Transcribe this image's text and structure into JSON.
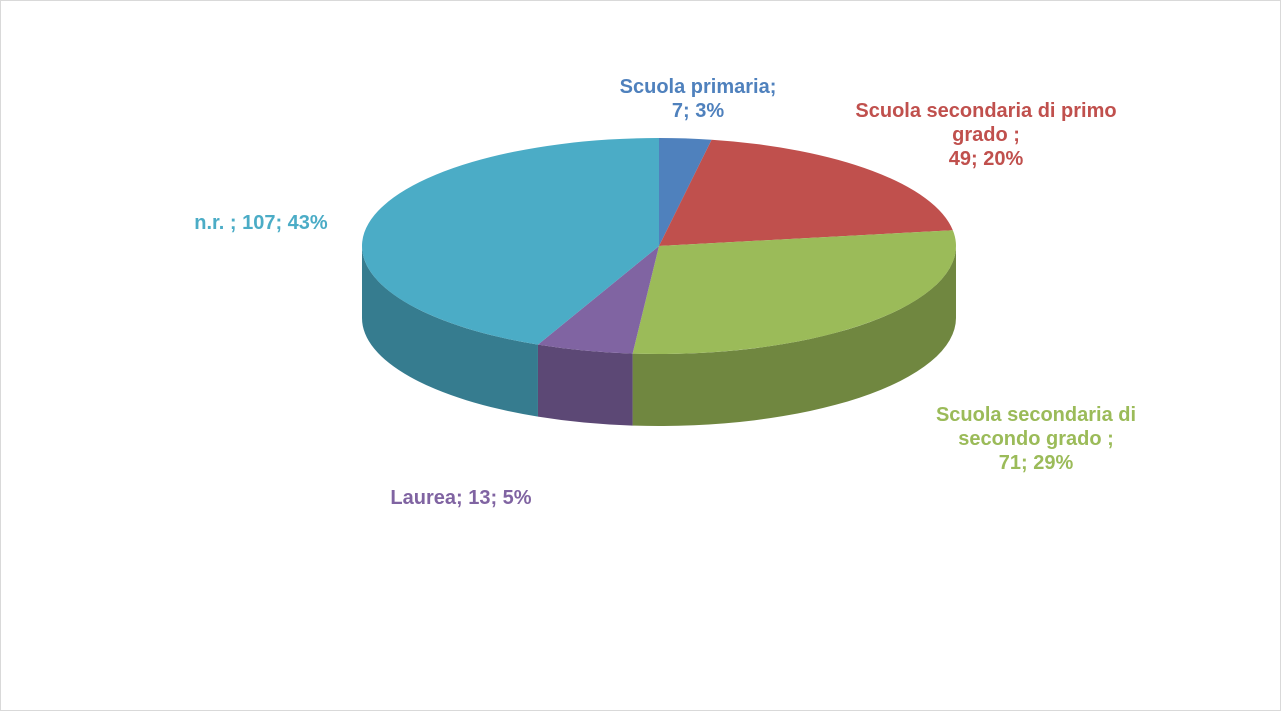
{
  "chart_data": {
    "type": "pie3d",
    "categories": [
      "Scuola primaria;",
      "Scuola secondaria di primo grado ;",
      "Scuola secondaria di secondo grado ;",
      "Laurea;",
      "n.r. ;"
    ],
    "values": [
      7,
      49,
      71,
      13,
      107
    ],
    "value_labels": [
      "7; 3%",
      "49; 20%",
      "71; 29%",
      "13; 5%",
      "107; 43%"
    ],
    "colors": [
      "#4f81bd",
      "#c0504d",
      "#9bbb59",
      "#8064a2",
      "#4bacc6"
    ]
  }
}
